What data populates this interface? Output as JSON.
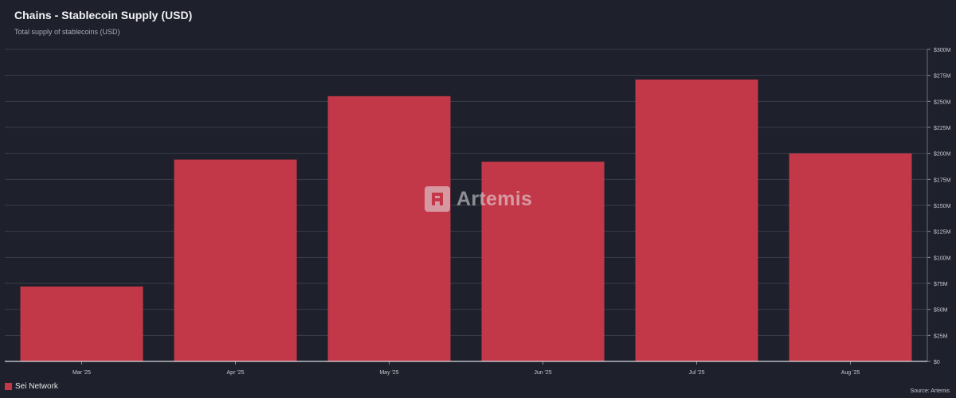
{
  "header": {
    "title": "Chains - Stablecoin Supply (USD)",
    "subtitle": "Total supply of stablecoins (USD)"
  },
  "watermark": {
    "text": "Artemis"
  },
  "footer": {
    "source": "Source: Artemis"
  },
  "colors": {
    "background": "#1e202b",
    "bar": "#c23848",
    "grid": "#3a3d4a",
    "axis_text": "#c9cad0"
  },
  "chart_data": {
    "type": "bar",
    "title": "Chains - Stablecoin Supply (USD)",
    "subtitle": "Total supply of stablecoins (USD)",
    "categories": [
      "Mar '25",
      "Apr '25",
      "May '25",
      "Jun '25",
      "Jul '25",
      "Aug '25"
    ],
    "series": [
      {
        "name": "Sei Network",
        "values": [
          72,
          194,
          255,
          192,
          271,
          200
        ]
      }
    ],
    "value_unit": "$M",
    "ylim": [
      0,
      300
    ],
    "yticks": [
      0,
      25,
      50,
      75,
      100,
      125,
      150,
      175,
      200,
      225,
      250,
      275,
      300
    ],
    "ytick_labels": [
      "$0",
      "$25M",
      "$50M",
      "$75M",
      "$100M",
      "$125M",
      "$150M",
      "$175M",
      "$200M",
      "$225M",
      "$250M",
      "$275M",
      "$300M"
    ],
    "y_axis_side": "right",
    "grid": true,
    "legend": "bottom-left"
  }
}
